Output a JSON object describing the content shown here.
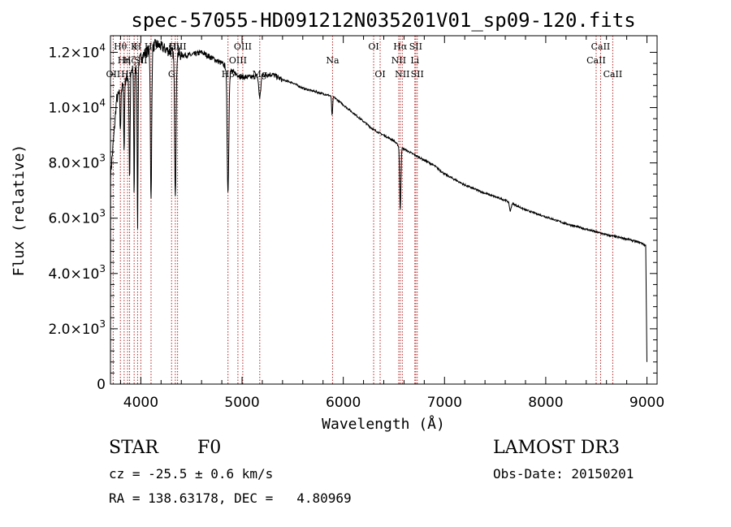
{
  "chart_data": {
    "type": "line",
    "title": "spec-57055-HD091212N035201V01_sp09-120.fits",
    "xlabel": "Wavelength (Å)",
    "ylabel": "Flux (relative)",
    "xlim": [
      3700,
      9100
    ],
    "ylim": [
      0,
      12600
    ],
    "x_ticks": [
      {
        "value": 4000,
        "label": "4000"
      },
      {
        "value": 5000,
        "label": "5000"
      },
      {
        "value": 6000,
        "label": "6000"
      },
      {
        "value": 7000,
        "label": "7000"
      },
      {
        "value": 8000,
        "label": "8000"
      },
      {
        "value": 9000,
        "label": "9000"
      }
    ],
    "y_ticks": [
      {
        "value": 0,
        "mant": "0",
        "exp": ""
      },
      {
        "value": 2000,
        "mant": "2.0×10",
        "exp": "3"
      },
      {
        "value": 4000,
        "mant": "4.0×10",
        "exp": "3"
      },
      {
        "value": 6000,
        "mant": "6.0×10",
        "exp": "3"
      },
      {
        "value": 8000,
        "mant": "8.0×10",
        "exp": "3"
      },
      {
        "value": 10000,
        "mant": "1.0×10",
        "exp": "4"
      },
      {
        "value": 12000,
        "mant": "1.2×10",
        "exp": "4"
      }
    ],
    "series": [
      {
        "name": "spectrum",
        "continuum": [
          [
            3700,
            7500
          ],
          [
            3730,
            8800
          ],
          [
            3760,
            10300
          ],
          [
            3800,
            10600
          ],
          [
            3850,
            11000
          ],
          [
            3900,
            11300
          ],
          [
            3950,
            11400
          ],
          [
            4000,
            11800
          ],
          [
            4050,
            12000
          ],
          [
            4100,
            12100
          ],
          [
            4150,
            12300
          ],
          [
            4200,
            12200
          ],
          [
            4250,
            12100
          ],
          [
            4300,
            12000
          ],
          [
            4400,
            11900
          ],
          [
            4500,
            11900
          ],
          [
            4600,
            12000
          ],
          [
            4700,
            11800
          ],
          [
            4800,
            11600
          ],
          [
            4900,
            11300
          ],
          [
            5000,
            11100
          ],
          [
            5100,
            11100
          ],
          [
            5200,
            11200
          ],
          [
            5300,
            11200
          ],
          [
            5400,
            11000
          ],
          [
            5500,
            10900
          ],
          [
            5600,
            10700
          ],
          [
            5700,
            10600
          ],
          [
            5800,
            10500
          ],
          [
            5900,
            10400
          ],
          [
            6000,
            10100
          ],
          [
            6100,
            9800
          ],
          [
            6200,
            9500
          ],
          [
            6300,
            9200
          ],
          [
            6400,
            9000
          ],
          [
            6500,
            8800
          ],
          [
            6550,
            8600
          ],
          [
            6600,
            8500
          ],
          [
            6700,
            8300
          ],
          [
            6800,
            8100
          ],
          [
            6900,
            7900
          ],
          [
            7000,
            7600
          ],
          [
            7200,
            7200
          ],
          [
            7400,
            6900
          ],
          [
            7600,
            6650
          ],
          [
            7800,
            6300
          ],
          [
            8000,
            6050
          ],
          [
            8200,
            5800
          ],
          [
            8400,
            5600
          ],
          [
            8600,
            5400
          ],
          [
            8800,
            5250
          ],
          [
            8950,
            5100
          ],
          [
            8990,
            5000
          ]
        ],
        "absorption": [
          [
            3798,
            1500,
            4
          ],
          [
            3835,
            2500,
            4
          ],
          [
            3889,
            3800,
            5
          ],
          [
            3934,
            4500,
            4
          ],
          [
            3968,
            6000,
            4
          ],
          [
            4101,
            5500,
            6
          ],
          [
            4341,
            5000,
            7
          ],
          [
            4861,
            4500,
            8
          ],
          [
            5175,
            800,
            10
          ],
          [
            5890,
            700,
            5
          ],
          [
            6563,
            2300,
            6
          ],
          [
            7650,
            300,
            8
          ]
        ]
      }
    ],
    "lines": [
      {
        "wl": 3727,
        "label": "OII",
        "row": 3
      },
      {
        "wl": 3798,
        "label": "Hθ",
        "row": 1
      },
      {
        "wl": 3835,
        "label": "Hη",
        "row": 2
      },
      {
        "wl": 3869,
        "label": "Hη",
        "row": 3
      },
      {
        "wl": 3889,
        "label": "Hζ",
        "row": 2
      },
      {
        "wl": 3934,
        "label": "K",
        "row": 1
      },
      {
        "wl": 3968,
        "label": "H",
        "row": 1
      },
      {
        "wl": 4000,
        "label": "SII",
        "row": 2
      },
      {
        "wl": 4101,
        "label": "Hδ",
        "row": 1
      },
      {
        "wl": 4304,
        "label": "G",
        "row": 3
      },
      {
        "wl": 4341,
        "label": "Hγ",
        "row": 1
      },
      {
        "wl": 4363,
        "label": "OIII",
        "row": 1
      },
      {
        "wl": 4861,
        "label": "Hβ",
        "row": 3
      },
      {
        "wl": 4959,
        "label": "OIII",
        "row": 2
      },
      {
        "wl": 5007,
        "label": "OIII",
        "row": 1
      },
      {
        "wl": 5175,
        "label": "Mg",
        "row": 3
      },
      {
        "wl": 5894,
        "label": "Na",
        "row": 2
      },
      {
        "wl": 6300,
        "label": "OI",
        "row": 1
      },
      {
        "wl": 6364,
        "label": "OI",
        "row": 3
      },
      {
        "wl": 6548,
        "label": "NII",
        "row": 2
      },
      {
        "wl": 6563,
        "label": "Hα",
        "row": 1
      },
      {
        "wl": 6583,
        "label": "NII",
        "row": 3
      },
      {
        "wl": 6707,
        "label": "Li",
        "row": 2
      },
      {
        "wl": 6716,
        "label": "SII",
        "row": 1
      },
      {
        "wl": 6731,
        "label": "SII",
        "row": 3
      },
      {
        "wl": 8498,
        "label": "CaII",
        "row": 2
      },
      {
        "wl": 8542,
        "label": "CaII",
        "row": 1
      },
      {
        "wl": 8662,
        "label": "CaII",
        "row": 3
      }
    ],
    "colors": {
      "line": "#000000",
      "markers": "#b22222",
      "axes": "#000000"
    }
  },
  "info": {
    "object_class": "STAR",
    "subclass": "F0",
    "survey": "LAMOST DR3",
    "cz": "cz = -25.5 ± 0.6 km/s",
    "obs_date": "Obs-Date: 20150201",
    "coords": "RA = 138.63178, DEC =   4.80969"
  }
}
